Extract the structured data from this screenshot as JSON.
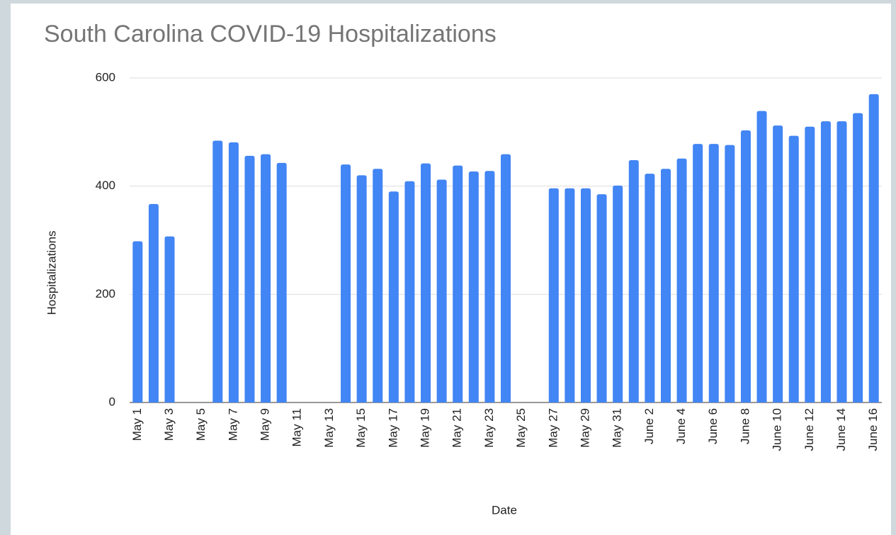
{
  "chart_data": {
    "type": "bar",
    "title": "South Carolina COVID-19 Hospitalizations",
    "x_label": "Date",
    "y_label": "Hospitalizations",
    "categories": [
      "May 1",
      null,
      "May 3",
      null,
      "May 5",
      null,
      "May 7",
      null,
      "May 9",
      null,
      "May 11",
      null,
      "May 13",
      null,
      "May 15",
      null,
      "May 17",
      null,
      "May 19",
      null,
      "May 21",
      null,
      "May 23",
      null,
      "May 25",
      null,
      "May 27",
      null,
      "May 29",
      null,
      "May 31",
      null,
      "June 2",
      null,
      "June 4",
      null,
      "June 6",
      null,
      "June 8",
      null,
      "June 10",
      null,
      "June 12",
      null,
      "June 14",
      null,
      "June 16"
    ],
    "values": [
      298,
      367,
      307,
      null,
      null,
      484,
      481,
      456,
      459,
      443,
      null,
      null,
      null,
      440,
      420,
      432,
      390,
      409,
      442,
      412,
      438,
      427,
      428,
      459,
      null,
      null,
      396,
      396,
      396,
      385,
      401,
      448,
      423,
      432,
      451,
      478,
      478,
      476,
      503,
      539,
      512,
      493,
      510,
      520,
      520,
      535,
      570
    ],
    "color": "#4285f4",
    "ylim": [
      0,
      600
    ],
    "yticks": [
      0,
      200,
      400,
      600
    ],
    "grid": true
  }
}
